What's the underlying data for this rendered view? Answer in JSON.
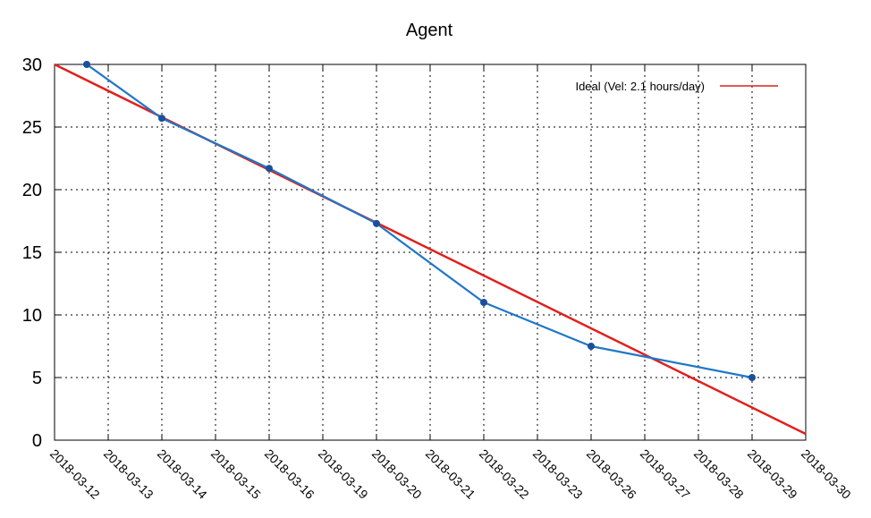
{
  "chart_data": {
    "type": "line",
    "title": "Agent",
    "xlabel": "",
    "ylabel": "",
    "categories": [
      "2018-03-12",
      "2018-03-13",
      "2018-03-14",
      "2018-03-15",
      "2018-03-16",
      "2018-03-19",
      "2018-03-20",
      "2018-03-21",
      "2018-03-22",
      "2018-03-23",
      "2018-03-26",
      "2018-03-27",
      "2018-03-28",
      "2018-03-29",
      "2018-03-30"
    ],
    "ylim": [
      0,
      30
    ],
    "yticks": [
      0,
      5,
      10,
      15,
      20,
      25,
      30
    ],
    "grid": true,
    "legend_position": "top-right",
    "series": [
      {
        "name": "Ideal (Vel: 2.1 hours/day)",
        "color": "#e0201c",
        "points": [
          {
            "x": "2018-03-12",
            "y": 30
          },
          {
            "x": "2018-03-30",
            "y": 0.5
          }
        ]
      },
      {
        "name": "",
        "color": "#1f77c8",
        "marker_color": "#1a4f9c",
        "points": [
          {
            "x": "2018-03-12",
            "offset": 0.6,
            "y": 30
          },
          {
            "x": "2018-03-14",
            "y": 25.7
          },
          {
            "x": "2018-03-16",
            "y": 21.7
          },
          {
            "x": "2018-03-20",
            "y": 17.3
          },
          {
            "x": "2018-03-22",
            "y": 11
          },
          {
            "x": "2018-03-26",
            "y": 7.5
          },
          {
            "x": "2018-03-29",
            "y": 5
          }
        ]
      }
    ]
  }
}
